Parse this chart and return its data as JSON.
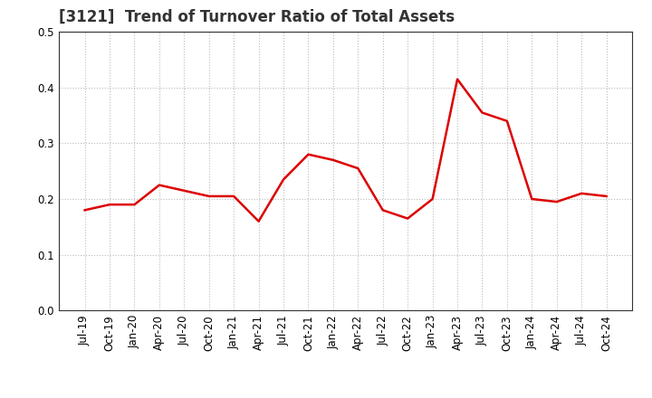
{
  "title": "[3121]  Trend of Turnover Ratio of Total Assets",
  "x_labels": [
    "Jul-19",
    "Oct-19",
    "Jan-20",
    "Apr-20",
    "Jul-20",
    "Oct-20",
    "Jan-21",
    "Apr-21",
    "Jul-21",
    "Oct-21",
    "Jan-22",
    "Apr-22",
    "Jul-22",
    "Oct-22",
    "Jan-23",
    "Apr-23",
    "Jul-23",
    "Oct-23",
    "Jan-24",
    "Apr-24",
    "Jul-24",
    "Oct-24"
  ],
  "y_values": [
    0.18,
    0.19,
    0.19,
    0.225,
    0.215,
    0.205,
    0.205,
    0.16,
    0.235,
    0.28,
    0.27,
    0.255,
    0.18,
    0.165,
    0.2,
    0.415,
    0.355,
    0.34,
    0.2,
    0.195,
    0.21,
    0.205
  ],
  "line_color": "#dd0000",
  "line_width": 1.8,
  "ylim": [
    0.0,
    0.5
  ],
  "yticks": [
    0.0,
    0.1,
    0.2,
    0.3,
    0.4,
    0.5
  ],
  "grid_color": "#bbbbbb",
  "background_color": "#ffffff",
  "title_fontsize": 12,
  "tick_fontsize": 8.5
}
